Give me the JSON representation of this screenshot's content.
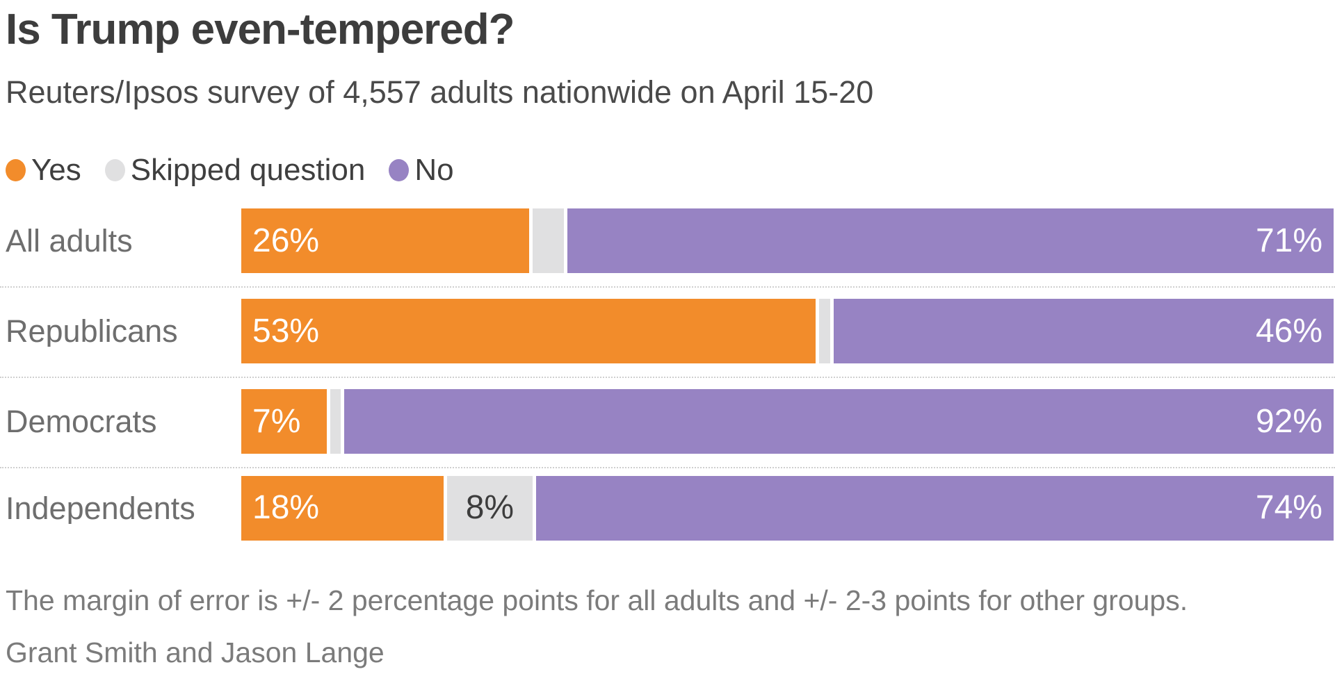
{
  "header": {
    "title": "Is Trump even-tempered?",
    "subtitle": "Reuters/Ipsos survey of 4,557 adults nationwide on April 15-20"
  },
  "legend": {
    "items": [
      {
        "label": "Yes",
        "color": "#F28C2B"
      },
      {
        "label": "Skipped question",
        "color": "#E0E0E1"
      },
      {
        "label": "No",
        "color": "#9783C3"
      }
    ]
  },
  "chart_data": {
    "type": "bar",
    "orientation": "horizontal",
    "stacked": true,
    "title": "Is Trump even-tempered?",
    "subtitle": "Reuters/Ipsos survey of 4,557 adults nationwide on April 15-20",
    "categories": [
      "All adults",
      "Republicans",
      "Democrats",
      "Independents"
    ],
    "series": [
      {
        "name": "Yes",
        "color": "#F28C2B",
        "values": [
          26,
          53,
          7,
          18
        ]
      },
      {
        "name": "Skipped question",
        "color": "#E0E0E1",
        "values": [
          3,
          1,
          1,
          8
        ]
      },
      {
        "name": "No",
        "color": "#9783C3",
        "values": [
          71,
          46,
          92,
          74
        ]
      }
    ],
    "value_suffix": "%",
    "xlim": [
      0,
      100
    ],
    "grid": false,
    "legend_position": "top",
    "label_colors": {
      "on_yes": "#FFFFFF",
      "on_no": "#FFFFFF",
      "on_skipped": "#3d3d3d"
    },
    "min_skipped_value_for_label": 5
  },
  "footer": {
    "note": "The margin of error is +/- 2 percentage points for all adults and +/- 2-3 points for other groups.",
    "byline": "Grant Smith and Jason Lange"
  }
}
